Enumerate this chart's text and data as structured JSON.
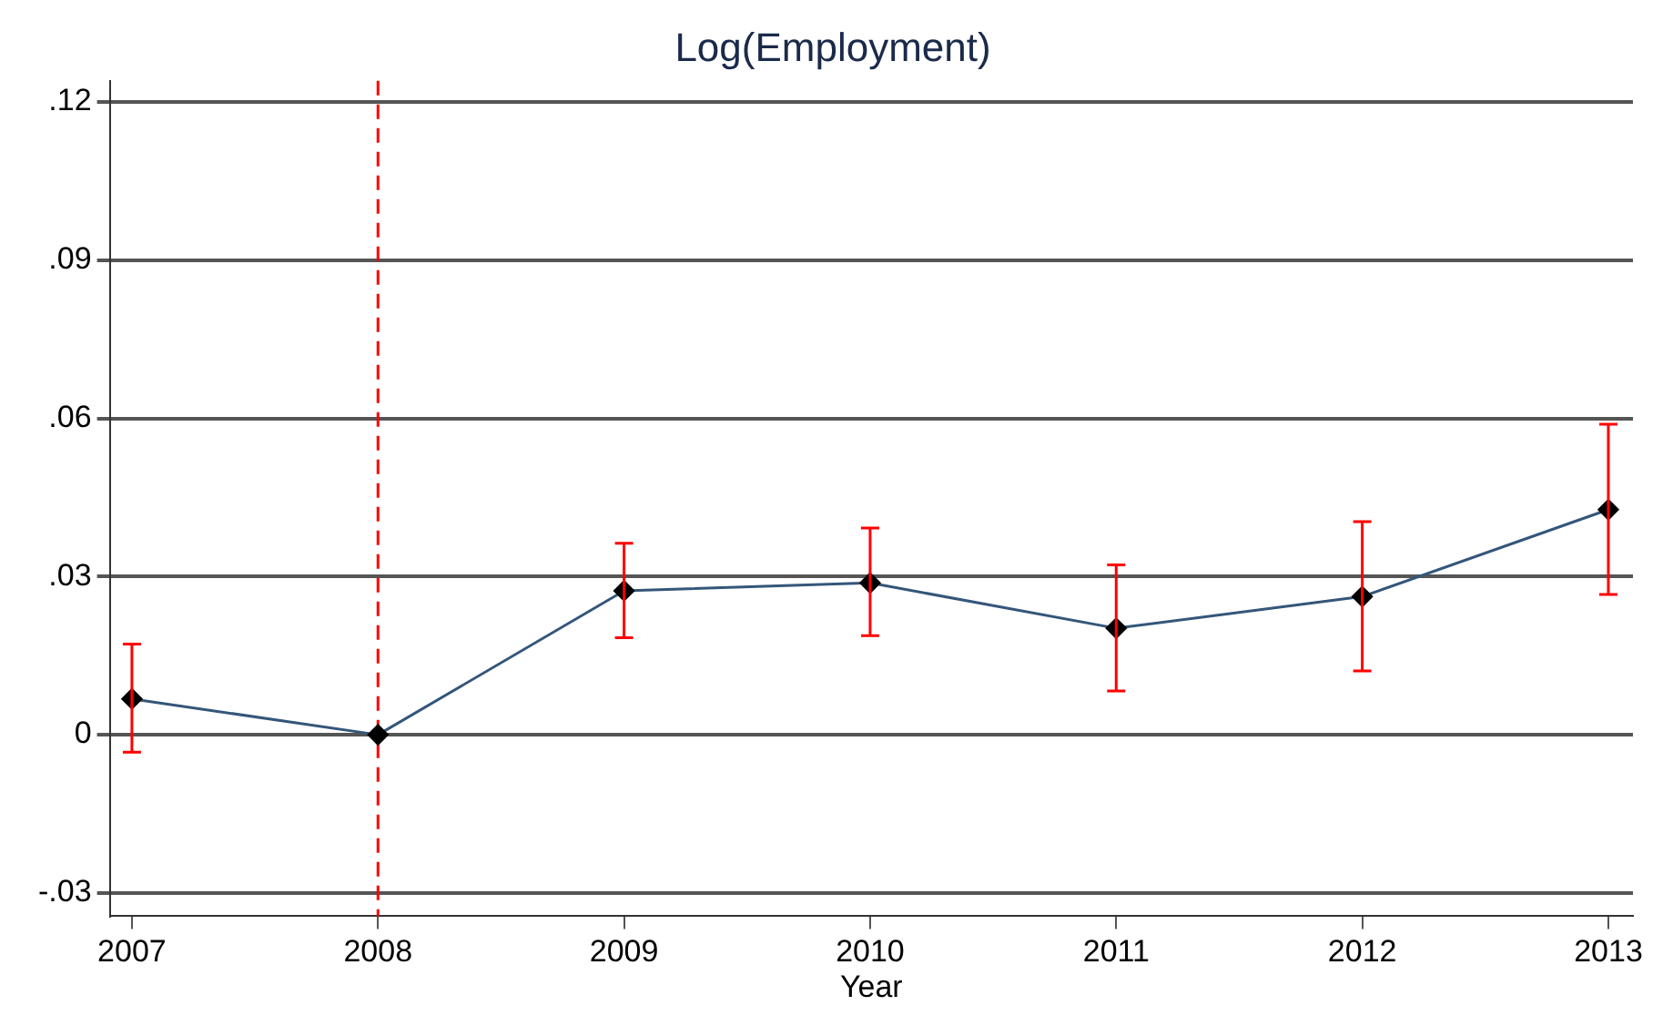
{
  "chart_data": {
    "type": "line",
    "title": "Log(Employment)",
    "xlabel": "Year",
    "x": [
      2007,
      2008,
      2009,
      2010,
      2011,
      2012,
      2013
    ],
    "series": [
      {
        "color": "#34567a",
        "values": [
          0.0068,
          0,
          0.0273,
          0.0288,
          0.0202,
          0.0262,
          0.0427
        ],
        "errors": [
          [
            -0.0033,
            0.0172
          ],
          null,
          [
            0.0184,
            0.0363
          ],
          [
            0.0188,
            0.0392
          ],
          [
            0.0083,
            0.0322
          ],
          [
            0.0121,
            0.0404
          ],
          [
            0.0266,
            0.0589
          ]
        ]
      }
    ],
    "xlim": [
      2006.91,
      2013.1
    ],
    "xticks": [
      2007,
      2008,
      2009,
      2010,
      2011,
      2012,
      2013
    ],
    "ylim": [
      -0.0344,
      0.124
    ],
    "yticks": [
      {
        "value": -0.03,
        "label": "-.03"
      },
      {
        "value": 0,
        "label": "0"
      },
      {
        "value": 0.03,
        "label": ".03"
      },
      {
        "value": 0.06,
        "label": ".06"
      },
      {
        "value": 0.09,
        "label": ".09"
      },
      {
        "value": 0.12,
        "label": ".12"
      }
    ],
    "ref_lines": [
      {
        "axis": "x",
        "value": 2008,
        "color": "#ff0000",
        "line_style": "dashed"
      }
    ],
    "grid": "y",
    "marker": "diamond",
    "line_style": "solid",
    "legend": false
  }
}
